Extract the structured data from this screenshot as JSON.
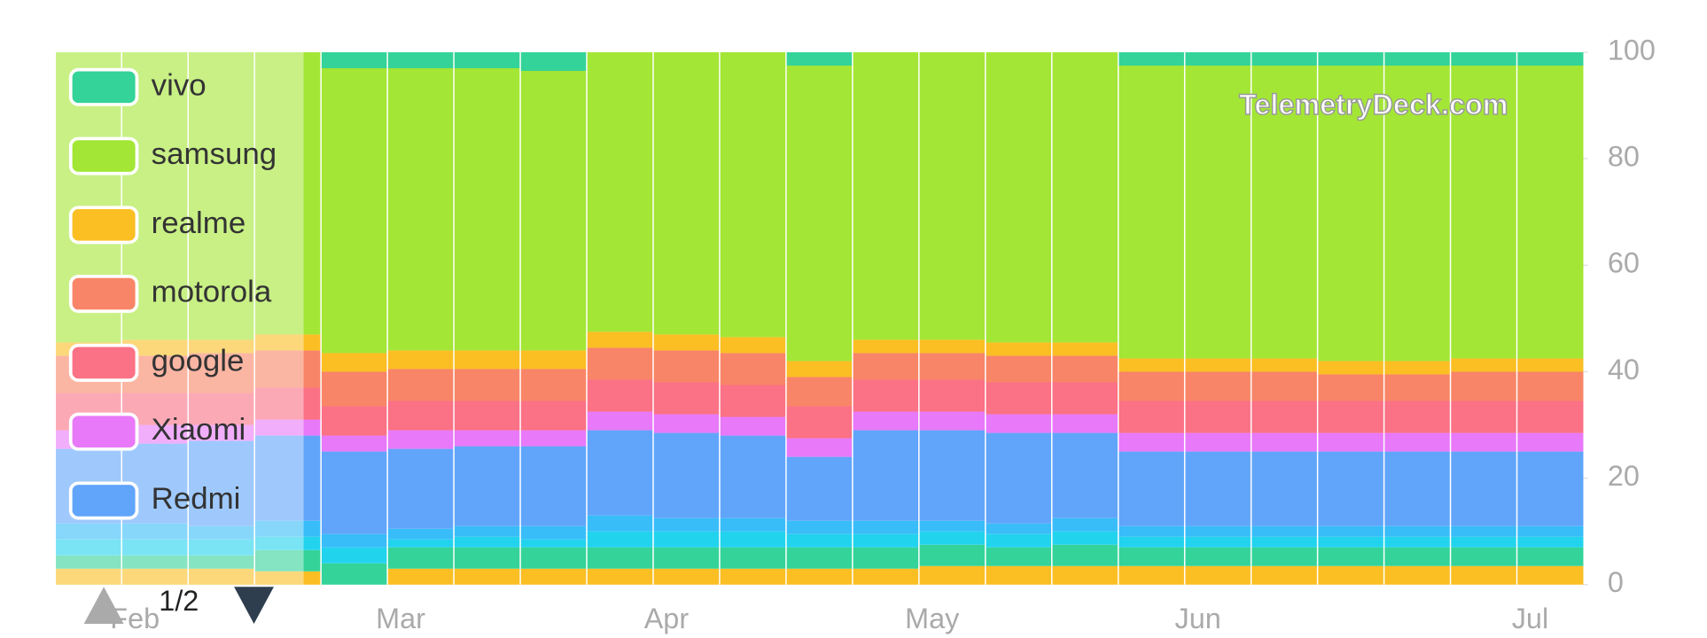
{
  "chart_data": {
    "type": "stacked-bar-100",
    "categories": [
      null,
      "Feb",
      null,
      null,
      null,
      "Mar",
      null,
      null,
      null,
      "Apr",
      null,
      null,
      null,
      "May",
      null,
      null,
      null,
      "Jun",
      null,
      null,
      null,
      null,
      "Jul"
    ],
    "series": [
      {
        "name": "vivo",
        "color": "#34d399",
        "values": [
          0,
          0,
          0,
          0,
          3,
          3,
          3,
          3.5,
          0,
          0,
          0,
          2.5,
          0,
          0,
          0,
          0,
          2.5,
          2.5,
          2.5,
          2.5,
          2.5,
          2.5,
          2.5
        ]
      },
      {
        "name": "samsung",
        "color": "#a3e635",
        "values": [
          54.5,
          54,
          54,
          53,
          53.5,
          53,
          53,
          52.5,
          52.5,
          53,
          53.5,
          55.5,
          54,
          54,
          54.5,
          54.5,
          55,
          55,
          55,
          55.5,
          55.5,
          55,
          55
        ]
      },
      {
        "name": "realme",
        "color": "#fbbf24",
        "values": [
          2.5,
          3,
          2.5,
          3,
          3.5,
          3.5,
          3.5,
          3.5,
          3,
          3,
          3,
          3,
          2.5,
          2.5,
          2.5,
          2.5,
          2.5,
          2.5,
          2.5,
          2.5,
          2.5,
          2.5,
          2.5
        ]
      },
      {
        "name": "motorola",
        "color": "#f88567",
        "values": [
          7,
          7,
          7.5,
          7,
          6.5,
          6,
          6,
          6,
          6,
          6,
          6,
          5.5,
          5,
          5,
          5,
          5,
          5.5,
          5.5,
          5.5,
          5,
          5,
          5.5,
          5.5
        ]
      },
      {
        "name": "google",
        "color": "#fb7185",
        "values": [
          7,
          6,
          6,
          6,
          5.5,
          5.5,
          5.5,
          5.5,
          6,
          6,
          6,
          6,
          6,
          6,
          6,
          6,
          6,
          6,
          6,
          6,
          6,
          6,
          6
        ]
      },
      {
        "name": "Xiaomi",
        "color": "#e879f9",
        "values": [
          3.5,
          3.5,
          3,
          3,
          3,
          3.5,
          3,
          3,
          3.5,
          3.5,
          3.5,
          3.5,
          3.5,
          3.5,
          3.5,
          3.5,
          3.5,
          3.5,
          3.5,
          3.5,
          3.5,
          3.5,
          3.5
        ]
      },
      {
        "name": "Redmi",
        "color": "#60a5fa",
        "values": [
          14,
          15,
          16,
          16,
          15.5,
          15,
          15,
          15,
          16,
          16,
          15.5,
          12,
          17,
          17,
          17,
          16,
          14,
          14,
          14,
          14,
          14,
          14,
          14
        ]
      },
      {
        "color": "#38bdf8",
        "values": [
          3,
          3,
          2.5,
          3,
          2.5,
          2,
          2,
          2.5,
          3,
          2.5,
          2.5,
          2.5,
          2.5,
          2,
          2,
          2.5,
          2,
          2,
          2,
          2,
          2,
          2,
          2
        ]
      },
      {
        "color": "#22d3ee",
        "values": [
          3,
          3,
          3,
          2.5,
          3,
          1.5,
          2,
          1.5,
          3,
          3,
          3,
          2.5,
          2.5,
          2.5,
          2.5,
          2.5,
          2,
          2,
          2,
          2,
          2,
          2,
          2
        ]
      },
      {
        "color": "#34d399",
        "values": [
          2.5,
          2.5,
          2.5,
          4,
          4,
          4,
          4,
          4,
          4,
          4,
          4,
          4,
          4,
          4,
          3.5,
          4,
          3.5,
          3.5,
          3.5,
          3.5,
          3.5,
          3.5,
          3.5
        ]
      },
      {
        "color": "#fbbf24",
        "values": [
          3,
          3,
          3,
          2.5,
          0,
          3,
          3,
          3,
          3,
          3,
          3,
          3,
          3,
          3.5,
          3.5,
          3.5,
          3.5,
          3.5,
          3.5,
          3.5,
          3.5,
          3.5,
          3.5
        ]
      }
    ],
    "ylim": [
      0,
      100
    ],
    "yticks": [
      0,
      20,
      40,
      60,
      80,
      100
    ],
    "legend_page": "1/2",
    "watermark": "TelemetryDeck.com"
  }
}
